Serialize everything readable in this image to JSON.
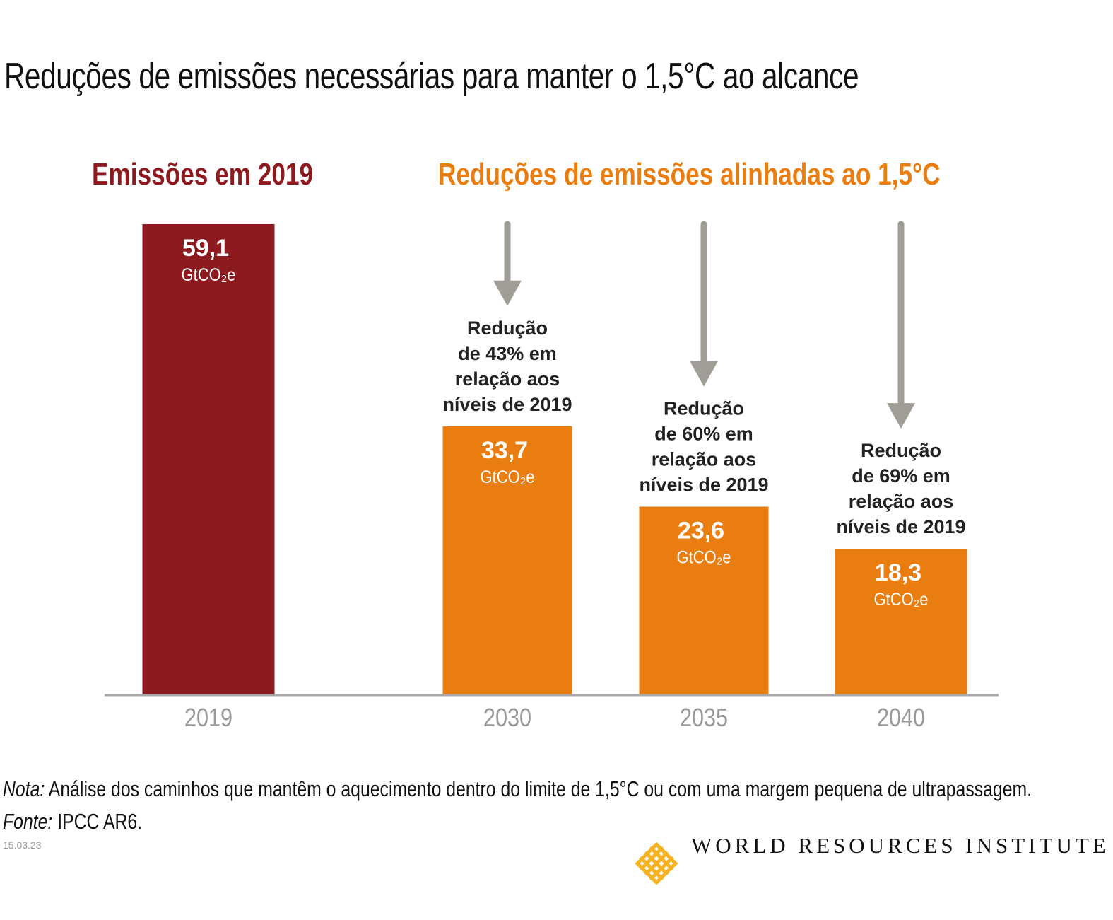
{
  "title": "Reduções de emissões necessárias para manter o 1,5°C ao alcance",
  "headers": {
    "left": "Emissões em 2019",
    "right": "Reduções de emissões alinhadas ao 1,5°C"
  },
  "colors": {
    "dark_red": "#8c1a1f",
    "orange": "#e97d0f",
    "arrow_gray": "#a09d96",
    "axis_gray": "#a8a8a8",
    "tick_gray": "#9a9a9a"
  },
  "chart_data": {
    "type": "bar",
    "title": "Reduções de emissões necessárias para manter o 1,5°C ao alcance",
    "xlabel": "",
    "ylabel": "GtCO2e",
    "ylim": [
      0,
      59.1
    ],
    "grid": false,
    "categories": [
      "2019",
      "2030",
      "2035",
      "2040"
    ],
    "values": [
      59.1,
      33.7,
      23.6,
      18.3
    ],
    "value_labels": [
      "59,1",
      "33,7",
      "23,6",
      "18,3"
    ],
    "unit_label": "GtCO₂e",
    "bar_colors": [
      "#8c1a1f",
      "#e97d0f",
      "#e97d0f",
      "#e97d0f"
    ],
    "annotations": [
      null,
      [
        "Redução",
        "de 43% em",
        "relação aos",
        "níveis de 2019"
      ],
      [
        "Redução",
        "de 60% em",
        "relação aos",
        "níveis de 2019"
      ],
      [
        "Redução",
        "de 69% em",
        "relação aos",
        "níveis de 2019"
      ]
    ],
    "reduction_percent": [
      null,
      43,
      60,
      69
    ]
  },
  "footer": {
    "note_label": "Nota:",
    "note_text": " Análise dos caminhos que mantêm o aquecimento dentro do limite de 1,5°C ou com uma margem pequena de ultrapassagem.",
    "source_label": "Fonte:",
    "source_text": " IPCC AR6.",
    "date": "15.03.23",
    "org": "WORLD RESOURCES INSTITUTE"
  }
}
